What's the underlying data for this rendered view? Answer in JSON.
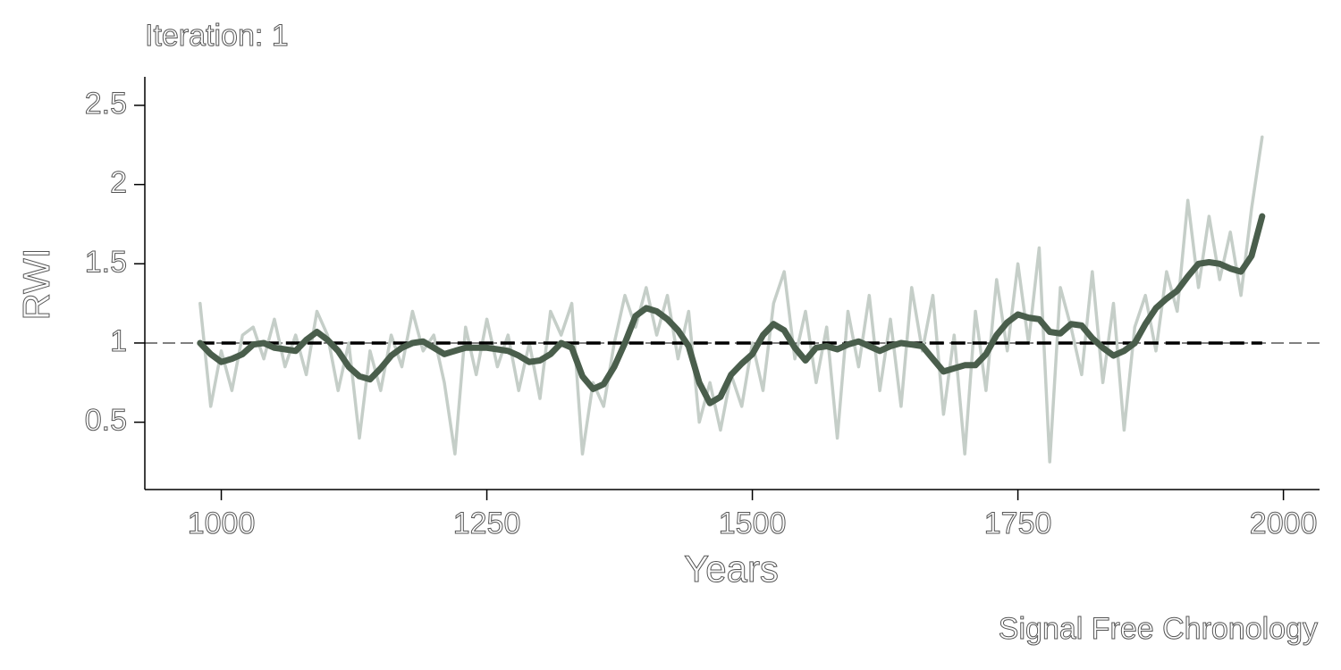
{
  "chart_data": {
    "type": "line",
    "title": "Iteration: 1",
    "xlabel": "Years",
    "ylabel": "RWI",
    "caption": "Signal Free Chronology",
    "x": [
      980,
      990,
      1000,
      1010,
      1020,
      1030,
      1040,
      1050,
      1060,
      1070,
      1080,
      1090,
      1100,
      1110,
      1120,
      1130,
      1140,
      1150,
      1160,
      1170,
      1180,
      1190,
      1200,
      1210,
      1220,
      1230,
      1240,
      1250,
      1260,
      1270,
      1280,
      1290,
      1300,
      1310,
      1320,
      1330,
      1340,
      1350,
      1360,
      1370,
      1380,
      1390,
      1400,
      1410,
      1420,
      1430,
      1440,
      1450,
      1460,
      1470,
      1480,
      1490,
      1500,
      1510,
      1520,
      1530,
      1540,
      1550,
      1560,
      1570,
      1580,
      1590,
      1600,
      1610,
      1620,
      1630,
      1640,
      1650,
      1660,
      1670,
      1680,
      1690,
      1700,
      1710,
      1720,
      1730,
      1740,
      1750,
      1760,
      1770,
      1780,
      1790,
      1800,
      1810,
      1820,
      1830,
      1840,
      1850,
      1860,
      1870,
      1880,
      1890,
      1900,
      1910,
      1920,
      1930,
      1940,
      1950,
      1960,
      1970,
      1980
    ],
    "series": [
      {
        "color": "#c5cec8",
        "width": 3.5,
        "values": [
          1.25,
          0.6,
          0.95,
          0.7,
          1.05,
          1.1,
          0.9,
          1.15,
          0.85,
          1.05,
          0.8,
          1.2,
          1.05,
          0.7,
          1.0,
          0.4,
          0.95,
          0.7,
          1.05,
          0.85,
          1.2,
          0.95,
          1.05,
          0.75,
          0.3,
          1.1,
          0.8,
          1.15,
          0.85,
          1.05,
          0.7,
          1.0,
          0.65,
          1.2,
          1.05,
          1.25,
          0.3,
          0.75,
          0.6,
          1.0,
          1.3,
          1.1,
          1.35,
          1.05,
          1.3,
          0.9,
          1.2,
          0.5,
          0.75,
          0.45,
          0.8,
          0.6,
          1.0,
          0.7,
          1.25,
          1.45,
          0.9,
          1.2,
          0.75,
          1.1,
          0.4,
          1.2,
          0.85,
          1.3,
          0.7,
          1.15,
          0.6,
          1.35,
          0.95,
          1.3,
          0.55,
          1.05,
          0.3,
          1.2,
          0.7,
          1.4,
          0.95,
          1.5,
          1.0,
          1.6,
          0.25,
          1.35,
          1.1,
          0.8,
          1.45,
          0.75,
          1.25,
          0.45,
          1.1,
          1.3,
          0.95,
          1.45,
          1.2,
          1.9,
          1.35,
          1.8,
          1.4,
          1.7,
          1.3,
          1.85,
          2.3
        ]
      },
      {
        "color": "#4a5e4c",
        "width": 7,
        "values": [
          1.0,
          0.93,
          0.88,
          0.9,
          0.93,
          0.99,
          1.0,
          0.97,
          0.96,
          0.95,
          1.02,
          1.07,
          1.02,
          0.95,
          0.85,
          0.79,
          0.77,
          0.84,
          0.92,
          0.97,
          1.0,
          1.01,
          0.97,
          0.93,
          0.95,
          0.97,
          0.97,
          0.97,
          0.96,
          0.95,
          0.92,
          0.88,
          0.89,
          0.93,
          1.0,
          0.97,
          0.79,
          0.71,
          0.74,
          0.85,
          1.0,
          1.17,
          1.22,
          1.2,
          1.15,
          1.08,
          0.98,
          0.75,
          0.62,
          0.66,
          0.8,
          0.87,
          0.93,
          1.05,
          1.12,
          1.08,
          0.97,
          0.89,
          0.97,
          0.98,
          0.96,
          0.99,
          1.01,
          0.98,
          0.95,
          0.98,
          1.0,
          0.99,
          0.98,
          0.9,
          0.82,
          0.84,
          0.86,
          0.86,
          0.93,
          1.05,
          1.13,
          1.18,
          1.16,
          1.15,
          1.07,
          1.06,
          1.12,
          1.11,
          1.03,
          0.97,
          0.92,
          0.95,
          1.0,
          1.12,
          1.22,
          1.28,
          1.33,
          1.42,
          1.5,
          1.51,
          1.5,
          1.47,
          1.45,
          1.55,
          1.8
        ]
      }
    ],
    "reference_line": 1,
    "xlim": [
      928,
      2034
    ],
    "ylim": [
      0.075,
      2.68
    ],
    "xticks": [
      1000,
      1250,
      1500,
      1750,
      2000
    ],
    "yticks": [
      0.5,
      1.0,
      1.5,
      2.0,
      2.5
    ]
  }
}
